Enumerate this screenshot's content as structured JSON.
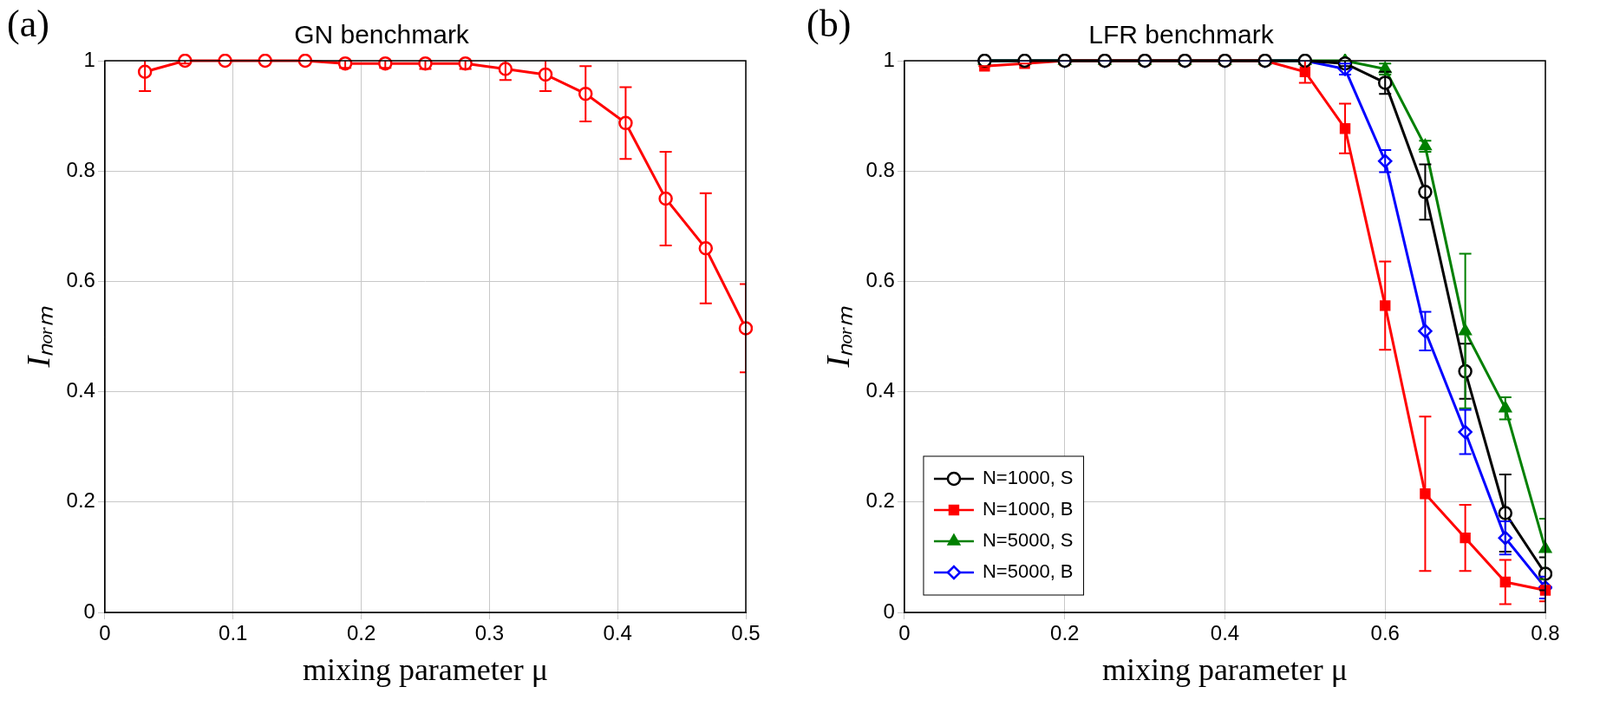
{
  "chart_data": [
    {
      "panel": "(a)",
      "type": "line",
      "title": "GN benchmark",
      "x_label": "mixing parameter μ",
      "y_label": "Iₙₒᵣₘ",
      "xlim": [
        0,
        0.5
      ],
      "xticks": [
        0,
        0.1,
        0.2,
        0.3,
        0.4,
        0.5
      ],
      "ylim": [
        0,
        1
      ],
      "yticks": [
        0,
        0.2,
        0.4,
        0.6,
        0.8,
        1
      ],
      "grid": true,
      "x": [
        0.03125,
        0.0625,
        0.09375,
        0.125,
        0.15625,
        0.1875,
        0.21875,
        0.25,
        0.28125,
        0.3125,
        0.34375,
        0.375,
        0.40625,
        0.4375,
        0.46875,
        0.5
      ],
      "series": [
        {
          "color": "#ff0000",
          "marker": "circle",
          "line_style": "solid",
          "values": [
            0.98,
            1.0,
            1.0,
            1.0,
            1.0,
            0.995,
            0.995,
            0.995,
            0.995,
            0.985,
            0.975,
            0.94,
            0.887,
            0.75,
            0.66,
            0.515
          ],
          "errors": [
            0.035,
            0.005,
            0.0,
            0.0,
            0.0,
            0.008,
            0.008,
            0.01,
            0.01,
            0.02,
            0.03,
            0.05,
            0.065,
            0.085,
            0.1,
            0.08
          ]
        }
      ]
    },
    {
      "panel": "(b)",
      "type": "line",
      "title": "LFR benchmark",
      "x_label": "mixing parameter μ",
      "y_label": "Iₙₒᵣₘ",
      "xlim": [
        0,
        0.8
      ],
      "xticks": [
        0,
        0.2,
        0.4,
        0.6,
        0.8
      ],
      "ylim": [
        0,
        1
      ],
      "yticks": [
        0,
        0.2,
        0.4,
        0.6,
        0.8,
        1
      ],
      "grid": true,
      "legend": "lower left",
      "x": [
        0.1,
        0.15,
        0.2,
        0.25,
        0.3,
        0.35,
        0.4,
        0.45,
        0.5,
        0.55,
        0.6,
        0.65,
        0.7,
        0.75,
        0.8
      ],
      "series": [
        {
          "name": "N=1000, S",
          "color": "#000000",
          "marker": "circle",
          "line_style": "solid",
          "values": [
            1,
            1,
            1,
            1,
            1,
            1,
            1,
            1,
            1,
            0.995,
            0.96,
            0.762,
            0.437,
            0.18,
            0.07
          ],
          "errors": [
            0,
            0,
            0,
            0,
            0,
            0,
            0,
            0,
            0,
            0.005,
            0.02,
            0.05,
            0.05,
            0.07,
            0.03
          ]
        },
        {
          "name": "N=1000, B",
          "color": "#ff0000",
          "marker": "square",
          "line_style": "solid",
          "values": [
            0.99,
            0.995,
            1,
            1,
            1,
            1,
            1,
            1,
            0.98,
            0.877,
            0.556,
            0.215,
            0.135,
            0.055,
            0.04
          ],
          "errors": [
            0,
            0,
            0,
            0,
            0,
            0,
            0,
            0,
            0.02,
            0.045,
            0.08,
            0.14,
            0.06,
            0.04,
            0.02
          ]
        },
        {
          "name": "N=5000, S",
          "color": "#008000",
          "marker": "triangle",
          "line_style": "solid",
          "values": [
            1,
            1,
            1,
            1,
            1,
            1,
            1,
            1,
            1,
            1,
            0.985,
            0.845,
            0.51,
            0.37,
            0.115
          ],
          "errors": [
            0,
            0,
            0,
            0,
            0,
            0,
            0,
            0,
            0,
            0,
            0.01,
            0.01,
            0.14,
            0.02,
            0.055
          ]
        },
        {
          "name": "N=5000, B",
          "color": "#0000ff",
          "marker": "diamond",
          "line_style": "solid",
          "values": [
            1,
            1,
            1,
            1,
            1,
            1,
            1,
            1,
            1,
            0.985,
            0.818,
            0.51,
            0.327,
            0.135,
            0.045
          ],
          "errors": [
            0,
            0,
            0,
            0,
            0,
            0,
            0,
            0,
            0,
            0.01,
            0.02,
            0.035,
            0.04,
            0.03,
            0.02
          ]
        }
      ]
    }
  ]
}
